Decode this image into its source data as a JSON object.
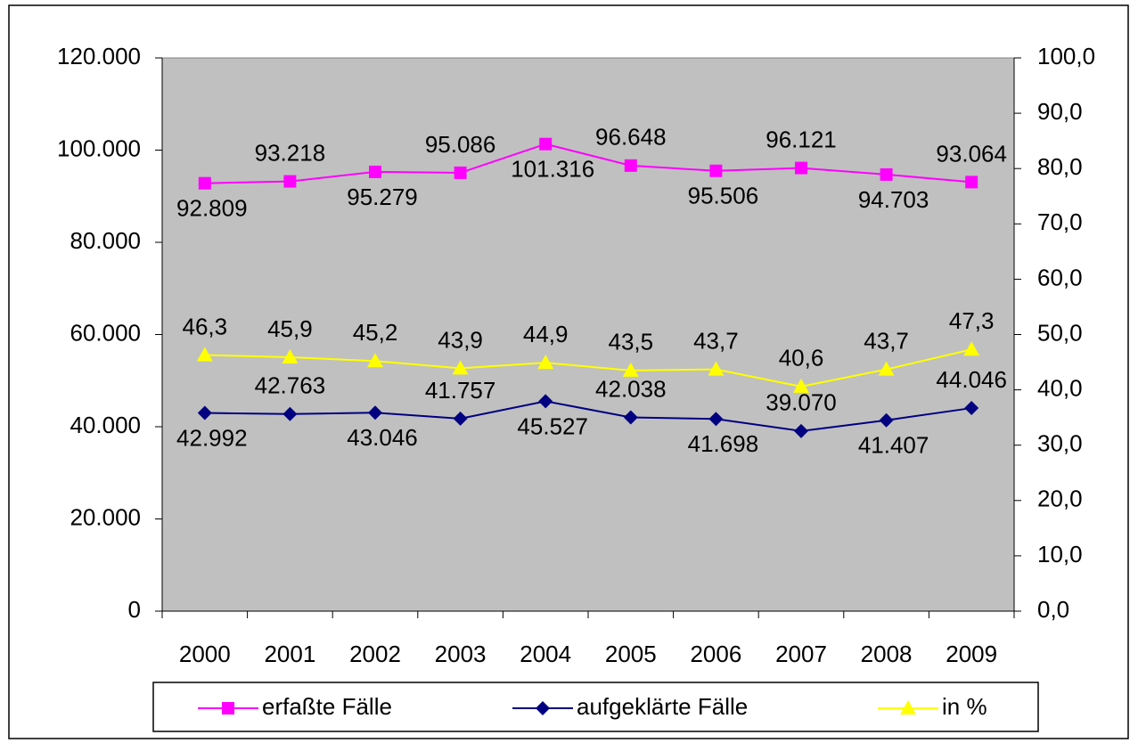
{
  "chart_data": {
    "type": "line",
    "categories": [
      "2000",
      "2001",
      "2002",
      "2003",
      "2004",
      "2005",
      "2006",
      "2007",
      "2008",
      "2009"
    ],
    "series": [
      {
        "name": "erfaßte Fälle",
        "color": "#ff00ff",
        "marker": "square",
        "values": [
          92809,
          93218,
          95279,
          95086,
          101316,
          96648,
          95506,
          96121,
          94703,
          93064
        ],
        "value_labels": [
          "92.809",
          "93.218",
          "95.279",
          "95.086",
          "101.316",
          "96.648",
          "95.506",
          "96.121",
          "94.703",
          "93.064"
        ]
      },
      {
        "name": "aufgeklärte Fälle",
        "color": "#000080",
        "marker": "diamond",
        "values": [
          42992,
          42763,
          43046,
          41757,
          45527,
          42038,
          41698,
          39070,
          41407,
          44046
        ],
        "value_labels": [
          "42.992",
          "42.763",
          "43.046",
          "41.757",
          "45.527",
          "42.038",
          "41.698",
          "39.070",
          "41.407",
          "44.046"
        ]
      },
      {
        "name": "in %",
        "color": "#ffff00",
        "marker": "triangle",
        "axis": "y2",
        "values": [
          46.3,
          45.9,
          45.2,
          43.9,
          44.9,
          43.5,
          43.7,
          40.6,
          43.7,
          47.3
        ],
        "value_labels": [
          "46,3",
          "45,9",
          "45,2",
          "43,9",
          "44,9",
          "43,5",
          "43,7",
          "40,6",
          "43,7",
          "47,3"
        ]
      }
    ],
    "ylim": [
      0,
      120000
    ],
    "yticks": [
      0,
      {
        "value": 20000,
        "label": "20.000"
      },
      {
        "value": 40000,
        "label": "40.000"
      },
      {
        "value": 60000,
        "label": "60.000"
      },
      {
        "value": 80000,
        "label": "80.000"
      },
      {
        "value": 100000,
        "label": "100.000"
      },
      {
        "value": 120000,
        "label": "120.000"
      }
    ],
    "y2lim": [
      0,
      100
    ],
    "y2ticks": [
      {
        "value": 0,
        "label": "0,0"
      },
      {
        "value": 10,
        "label": "10,0"
      },
      {
        "value": 20,
        "label": "20,0"
      },
      {
        "value": 30,
        "label": "30,0"
      },
      {
        "value": 40,
        "label": "40,0"
      },
      {
        "value": 50,
        "label": "50,0"
      },
      {
        "value": 60,
        "label": "60,0"
      },
      {
        "value": 70,
        "label": "70,0"
      },
      {
        "value": 80,
        "label": "80,0"
      },
      {
        "value": 90,
        "label": "90,0"
      },
      {
        "value": {
          "value": 100,
          "label": "100,0"
        },
        "label": "100,0"
      }
    ],
    "legend": "bottom",
    "plot_background": "#c0c0c0"
  }
}
